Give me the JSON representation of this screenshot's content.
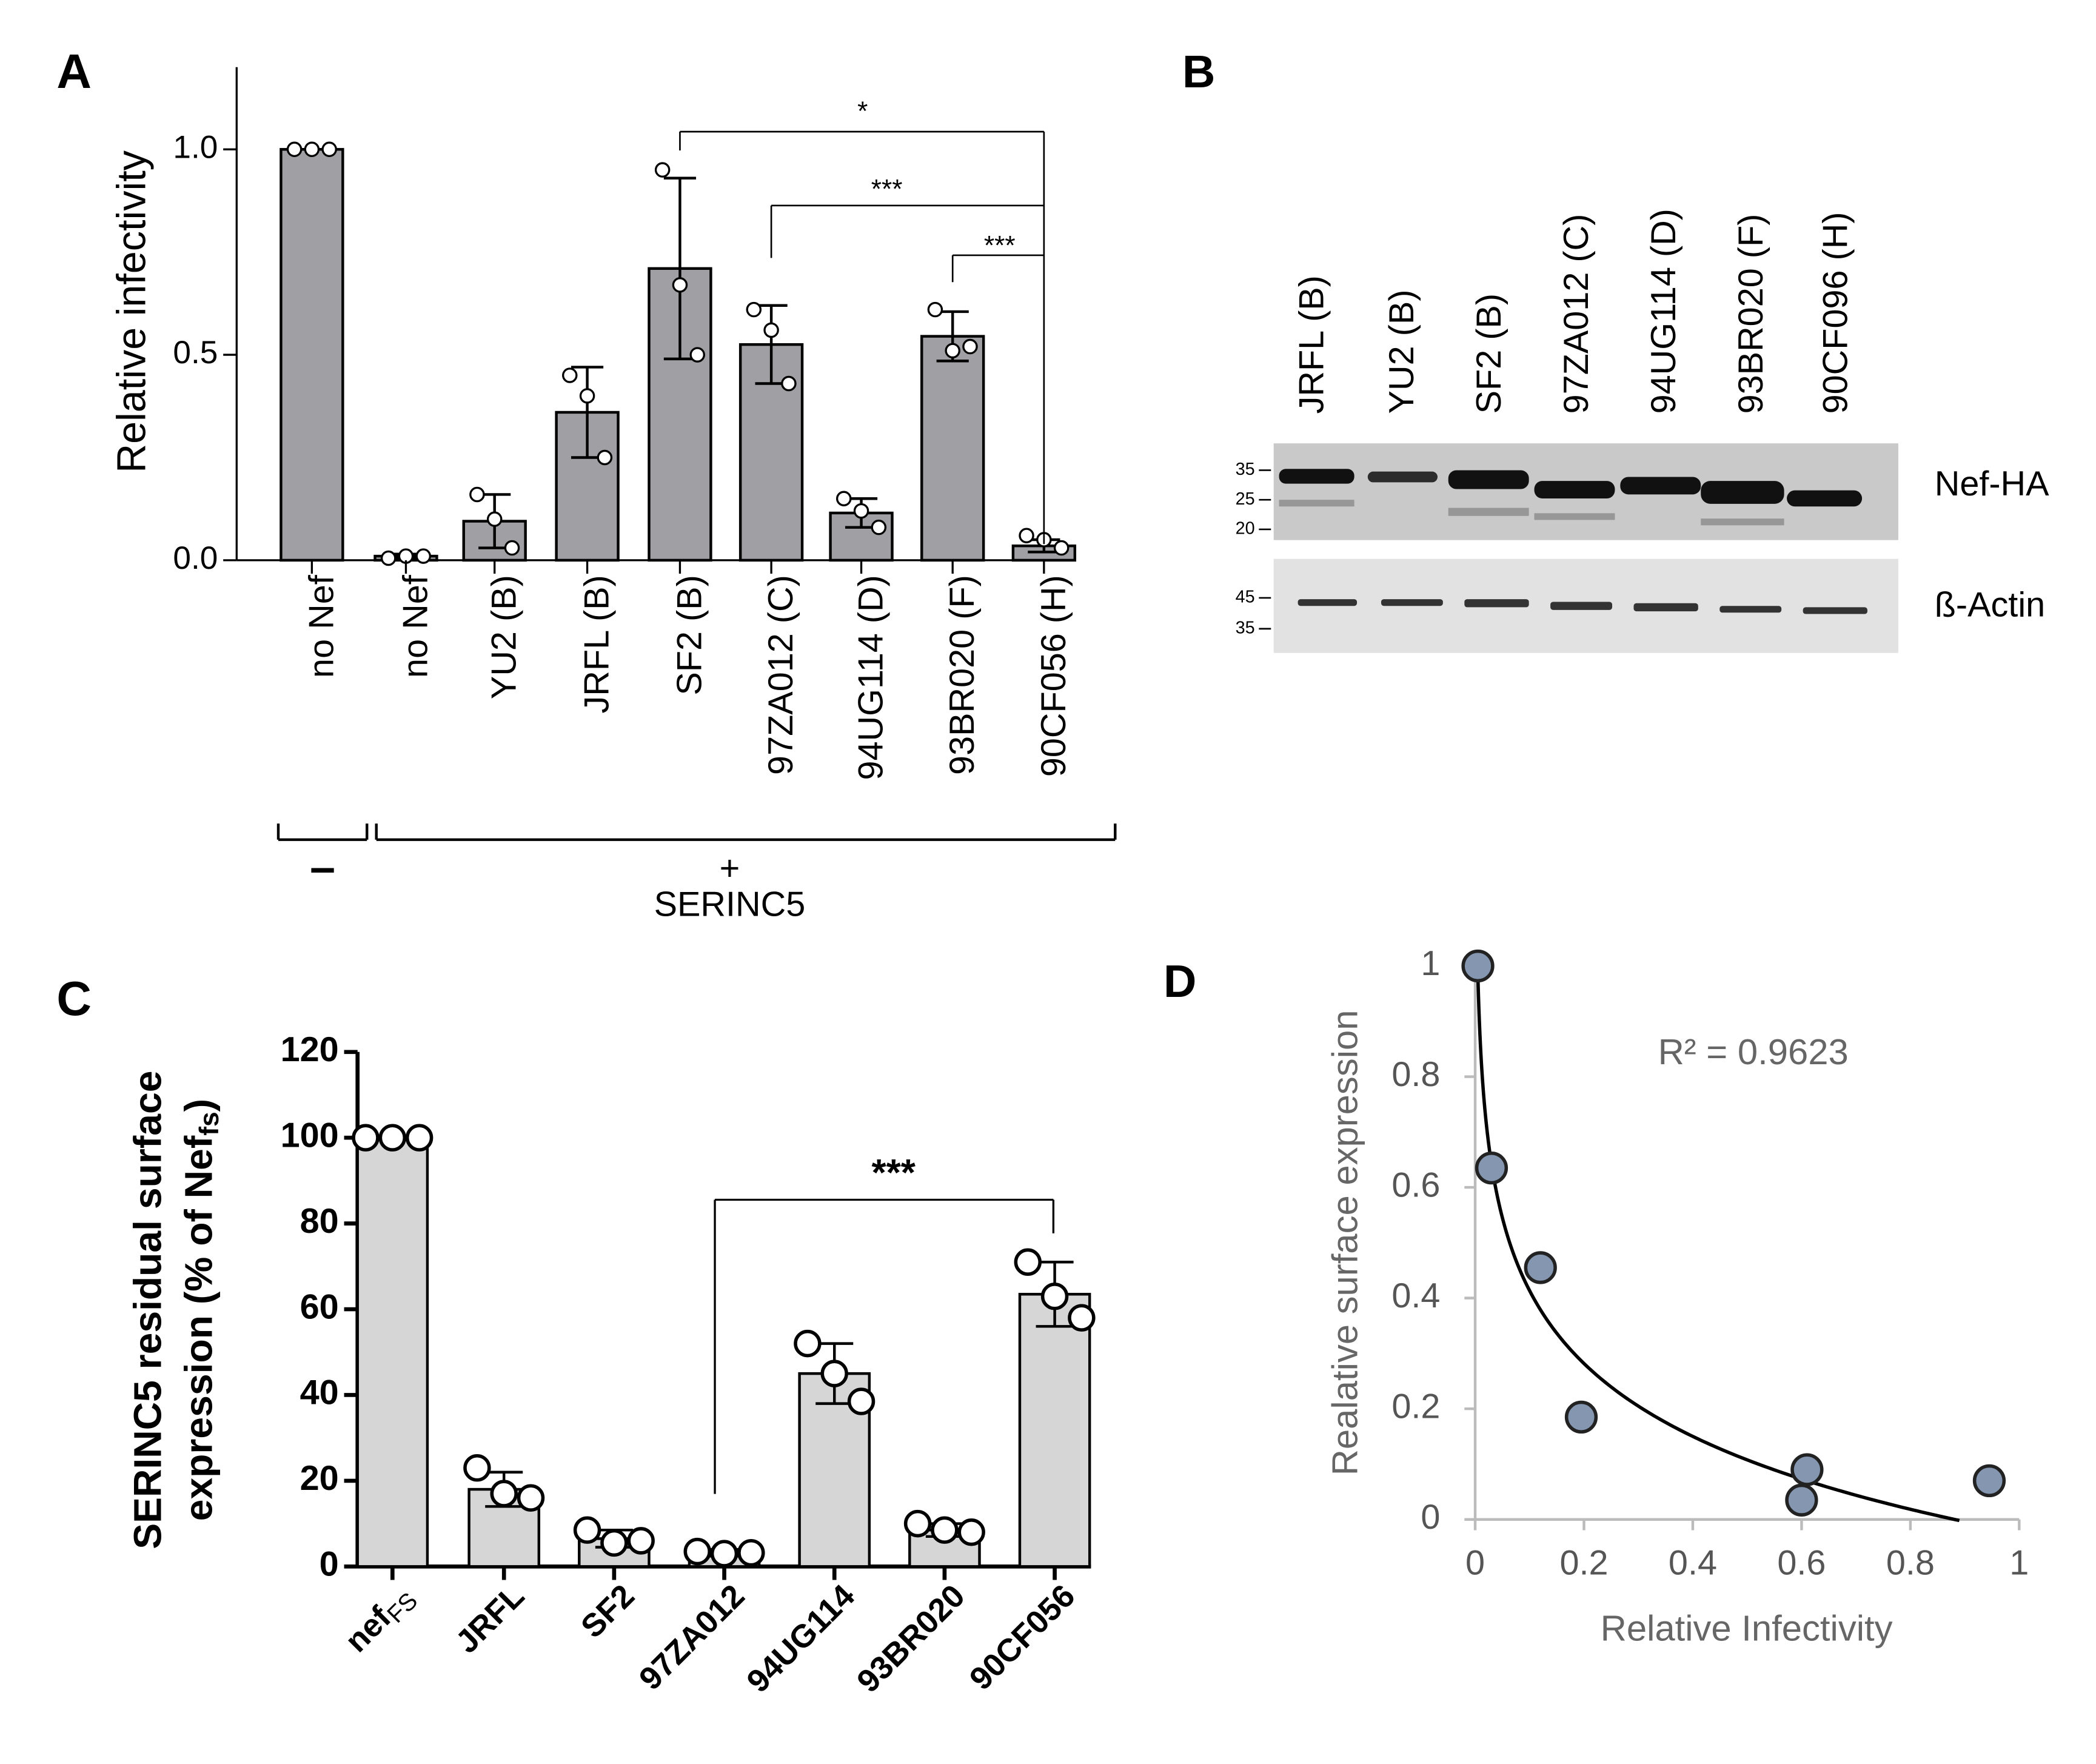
{
  "chart_data": [
    {
      "type": "bar",
      "panel": "A",
      "ylabel": "Relative infectivity",
      "categories": [
        "no Nef",
        "no Nef",
        "YU2 (B)",
        "JRFL (B)",
        "SF2 (B)",
        "97ZA012 (C)",
        "94UG114 (D)",
        "93BR020 (F)",
        "90CF056 (H)"
      ],
      "values": [
        1.0,
        0.01,
        0.095,
        0.36,
        0.71,
        0.525,
        0.115,
        0.545,
        0.035
      ],
      "errors": [
        0,
        0.005,
        0.065,
        0.11,
        0.22,
        0.095,
        0.035,
        0.06,
        0.015
      ],
      "points": [
        [
          1,
          1,
          1
        ],
        [
          0.005,
          0.01,
          0.01
        ],
        [
          0.16,
          0.1,
          0.03
        ],
        [
          0.45,
          0.4,
          0.25
        ],
        [
          0.95,
          0.67,
          0.5
        ],
        [
          0.61,
          0.56,
          0.43
        ],
        [
          0.15,
          0.12,
          0.08
        ],
        [
          0.61,
          0.51,
          0.52
        ],
        [
          0.06,
          0.05,
          0.03
        ]
      ],
      "color": "#a0a0a4",
      "ylim": [
        0,
        1.2
      ],
      "yticks": [
        {
          "value": 0,
          "label": "0.0"
        },
        {
          "value": 0.5,
          "label": "0.5"
        },
        {
          "value": 1,
          "label": "1.0"
        }
      ],
      "annotations": [
        "*",
        "***",
        "***"
      ],
      "group_labels": [
        "–",
        "+"
      ],
      "group_title": "SERINC5"
    },
    {
      "type": "bar",
      "panel": "C",
      "ylabel_line1": "SERINC5 residual surface",
      "ylabel_line2": "expression (% of Nef",
      "ylabel_sub": "fs",
      "ylabel_end": ")",
      "categories": [
        "nef",
        "JRFL",
        "SF2",
        "97ZA012",
        "94UG114",
        "93BR020",
        "90CF056"
      ],
      "first_category_subscript": "FS",
      "values": [
        100,
        18,
        6.5,
        3.2,
        45,
        8.5,
        63.5
      ],
      "errors": [
        0,
        4,
        2,
        0.8,
        7,
        1.5,
        7.5
      ],
      "points": [
        [
          100,
          100,
          100
        ],
        [
          23,
          17,
          16
        ],
        [
          8.5,
          5.5,
          6
        ],
        [
          3.5,
          3,
          3.2
        ],
        [
          52,
          45,
          38.5
        ],
        [
          10,
          8.5,
          8
        ],
        [
          71,
          63,
          58
        ]
      ],
      "color": "#d6d6d6",
      "ylim": [
        0,
        120
      ],
      "yticks": [
        0,
        20,
        40,
        60,
        80,
        100,
        120
      ],
      "annotations": [
        "***"
      ]
    },
    {
      "type": "scatter",
      "panel": "D",
      "xlabel": "Relative Infectivity",
      "ylabel": "Realative surface expression",
      "annotation": "R² = 0.9623",
      "x": [
        0.005,
        0.03,
        0.12,
        0.195,
        0.61,
        0.6,
        0.945
      ],
      "y": [
        1.0,
        0.635,
        0.455,
        0.185,
        0.09,
        0.035,
        0.07
      ],
      "color": "#8496b0",
      "trendline": {
        "kind": "logarithmic",
        "coef": -0.19,
        "intercept": -0.024,
        "x_range": [
          0.005,
          0.89
        ]
      },
      "xlim": [
        0,
        1
      ],
      "xticks": [
        0,
        0.2,
        0.4,
        0.6,
        0.8,
        1
      ],
      "ylim": [
        0,
        1
      ],
      "yticks": [
        0,
        0.2,
        0.4,
        0.6,
        0.8,
        1
      ]
    }
  ],
  "blot": {
    "panel": "B",
    "lanes": [
      "JRFL (B)",
      "YU2 (B)",
      "SF2 (B)",
      "97ZA012 (C)",
      "94UG114 (D)",
      "93BR020 (F)",
      "90CF096 (H)"
    ],
    "top_markers": [
      "35",
      "25",
      "20"
    ],
    "bottom_markers": [
      "45",
      "35"
    ],
    "top_label": "Nef-HA",
    "bottom_label": "ß-Actin"
  }
}
